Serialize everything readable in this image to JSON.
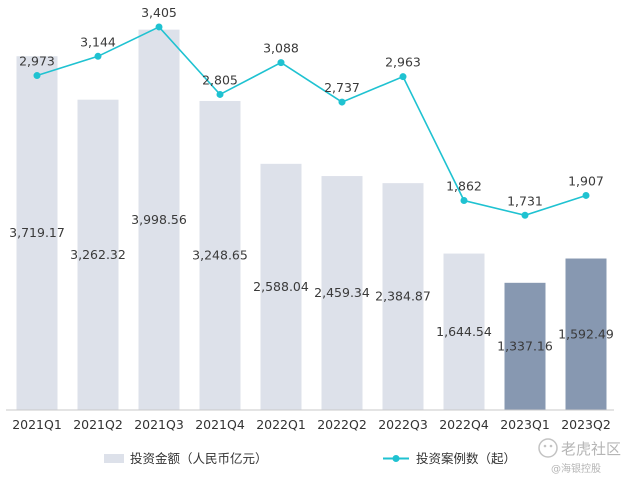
{
  "chart_data": {
    "type": "bar",
    "categories": [
      "2021Q1",
      "2021Q2",
      "2021Q3",
      "2021Q4",
      "2022Q1",
      "2022Q2",
      "2022Q3",
      "2022Q4",
      "2023Q1",
      "2023Q2"
    ],
    "series": [
      {
        "name": "投资金额（人民币亿元）",
        "kind": "bar",
        "values": [
          3719.17,
          3262.32,
          3998.56,
          3248.65,
          2588.04,
          2459.34,
          2384.87,
          1644.54,
          1337.16,
          1592.49
        ],
        "labels": [
          "3,719.17",
          "3,262.32",
          "3,998.56",
          "3,248.65",
          "2,588.04",
          "2,459.34",
          "2,384.87",
          "1,644.54",
          "1,337.16",
          "1,592.49"
        ]
      },
      {
        "name": "投资案例数（起）",
        "kind": "line",
        "values": [
          2973,
          3144,
          3405,
          2805,
          3088,
          2737,
          2963,
          1862,
          1731,
          1907
        ],
        "labels": [
          "2,973",
          "3,144",
          "3,405",
          "2,805",
          "3,088",
          "2,737",
          "2,963",
          "1,862",
          "1,731",
          "1,907"
        ]
      }
    ],
    "highlight_categories": [
      "2023Q1",
      "2023Q2"
    ],
    "colors": {
      "bar": "#dde1ea",
      "bar_highlight": "#8798b1",
      "line": "#1fc2d1",
      "baseline": "#c9c9c9"
    },
    "bar_ylim": [
      0,
      4100
    ],
    "line_ylim": [
      0,
      3600
    ],
    "legend_position": "bottom"
  },
  "watermark": {
    "brand": "老虎社区",
    "handle": "@海银控股"
  }
}
